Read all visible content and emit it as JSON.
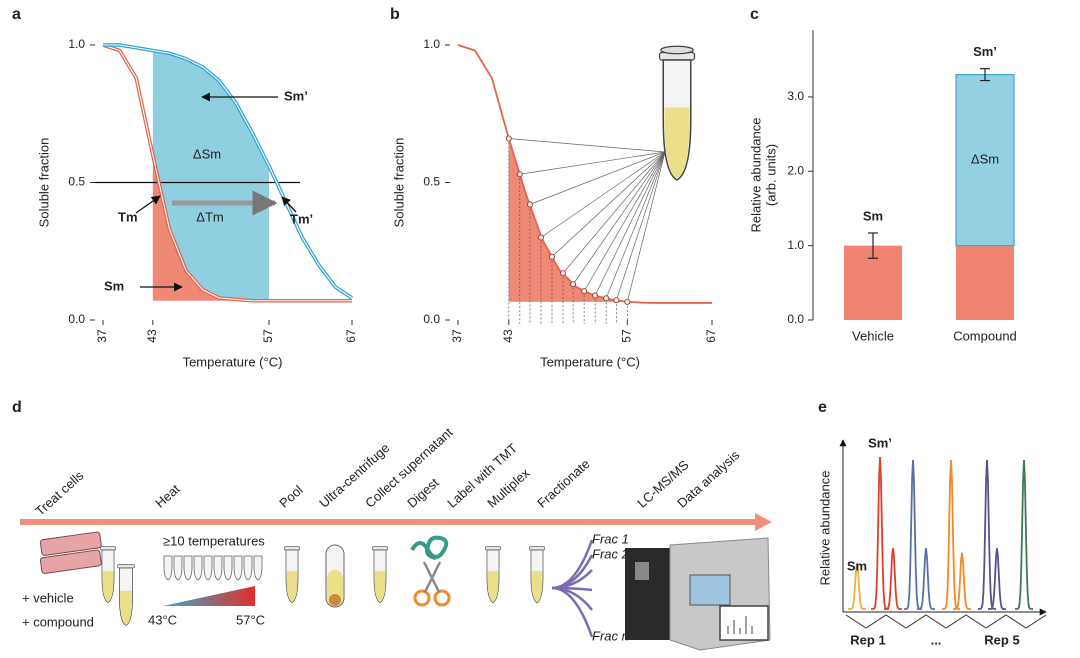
{
  "chart_data": [
    {
      "type": "line",
      "label": "a",
      "xlabel": "Temperature (°C)",
      "ylabel": "Soluble fraction",
      "x": [
        37,
        39,
        41,
        43,
        45,
        47,
        49,
        51,
        53,
        55,
        57,
        59,
        61,
        63,
        65,
        67
      ],
      "xlim": [
        37,
        67
      ],
      "ylim": [
        0,
        1
      ],
      "xticks": [
        37,
        43,
        57,
        67
      ],
      "yticks": [
        {
          "value": 0,
          "label": "0.0"
        },
        {
          "value": 0.5,
          "label": "0.5"
        },
        {
          "value": 1,
          "label": "1.0"
        }
      ],
      "shade": [
        43,
        57
      ],
      "hline": 0.5,
      "series": [
        {
          "name": "Sm",
          "color": "#e0654c",
          "values": [
            1.0,
            0.98,
            0.88,
            0.6,
            0.33,
            0.18,
            0.11,
            0.08,
            0.075,
            0.07,
            0.07,
            0.07,
            0.07,
            0.07,
            0.07,
            0.07
          ]
        },
        {
          "name": "Sm’",
          "color": "#2ea3d4",
          "values": [
            1.0,
            1.0,
            0.99,
            0.98,
            0.97,
            0.95,
            0.92,
            0.87,
            0.79,
            0.68,
            0.56,
            0.43,
            0.3,
            0.2,
            0.12,
            0.08
          ]
        }
      ],
      "annotations": [
        "ΔSm",
        "Tm",
        "ΔTm",
        "Tm’"
      ]
    },
    {
      "type": "line",
      "label": "b",
      "xlabel": "Temperature (°C)",
      "ylabel": "Soluble fraction",
      "x": [
        37,
        39,
        41,
        43,
        45,
        47,
        49,
        51,
        53,
        55,
        57,
        59,
        61,
        63,
        65,
        67
      ],
      "xlim": [
        37,
        67
      ],
      "ylim": [
        0,
        1
      ],
      "xticks": [
        37,
        43,
        57,
        67
      ],
      "yticks": [
        {
          "value": 0,
          "label": "0.0"
        },
        {
          "value": 0.5,
          "label": "0.5"
        },
        {
          "value": 1,
          "label": "1.0"
        }
      ],
      "shade": [
        43,
        57
      ],
      "series": [
        {
          "color": "#e0654c",
          "values": [
            1.0,
            0.98,
            0.88,
            0.66,
            0.46,
            0.29,
            0.18,
            0.12,
            0.09,
            0.075,
            0.066,
            0.063,
            0.062,
            0.062,
            0.062,
            0.062
          ]
        }
      ],
      "samples": {
        "x": [
          43,
          44.3,
          45.5,
          46.8,
          48.1,
          49.4,
          50.6,
          51.9,
          53.2,
          54.5,
          55.7,
          57
        ],
        "values": [
          0.66,
          0.53,
          0.42,
          0.3,
          0.23,
          0.17,
          0.13,
          0.105,
          0.089,
          0.079,
          0.072,
          0.066
        ]
      }
    },
    {
      "type": "bar",
      "label": "c",
      "ylabel": [
        "Relative abundance",
        "(arb. units)"
      ],
      "categories": [
        "Vehicle",
        "Compound"
      ],
      "ylim": [
        0,
        3.9
      ],
      "yticks": [
        {
          "value": 0,
          "label": "0.0"
        },
        {
          "value": 1,
          "label": "1.0"
        },
        {
          "value": 2,
          "label": "2.0"
        },
        {
          "value": 3,
          "label": "3.0"
        }
      ],
      "series": [
        {
          "name": "Sm",
          "color": "#f08470",
          "values": [
            1.0,
            1.0
          ]
        },
        {
          "name": "ΔSm",
          "color": "#92d0e2",
          "values": [
            0,
            2.3
          ]
        }
      ],
      "errors": [
        0.17,
        0.08
      ],
      "annotations": [
        "Sm’"
      ]
    }
  ],
  "workflow": {
    "label": "d",
    "steps": [
      "Treat cells",
      "Heat",
      "Pool",
      "Ultra-centrifuge",
      "Collect supernatant",
      "Digest",
      "Label with TMT",
      "Multiplex",
      "Fractionate",
      "LC-MS/MS",
      "Data analysis"
    ],
    "temperatures": "≥10 temperatures",
    "vehicle": "+ vehicle",
    "compound": "+ compound",
    "t_low": "43°C",
    "t_high": "57°C",
    "fractions": [
      "Frac 1",
      "Frac 2",
      "Frac n"
    ]
  },
  "chromatogram": {
    "label": "e",
    "ylabel": "Relative abundance",
    "peak_labels": [
      "Sm",
      "Sm’"
    ],
    "replicates": [
      "Rep 1",
      "...",
      "Rep 5"
    ],
    "peaks": [
      {
        "color": "#e8b33a",
        "height": 0.3
      },
      {
        "color": "#d9412f",
        "height": 1.0
      },
      {
        "color": "#d9412f",
        "height": 0.4
      },
      {
        "color": "#5a6fa5",
        "height": 0.98
      },
      {
        "color": "#5a6fa5",
        "height": 0.4
      },
      {
        "color": "#f08a2a",
        "height": 0.98
      },
      {
        "color": "#f08a2a",
        "height": 0.37
      },
      {
        "color": "#5e4f8c",
        "height": 0.98
      },
      {
        "color": "#5e4f8c",
        "height": 0.4
      },
      {
        "color": "#3f7a55",
        "height": 0.98
      }
    ]
  }
}
